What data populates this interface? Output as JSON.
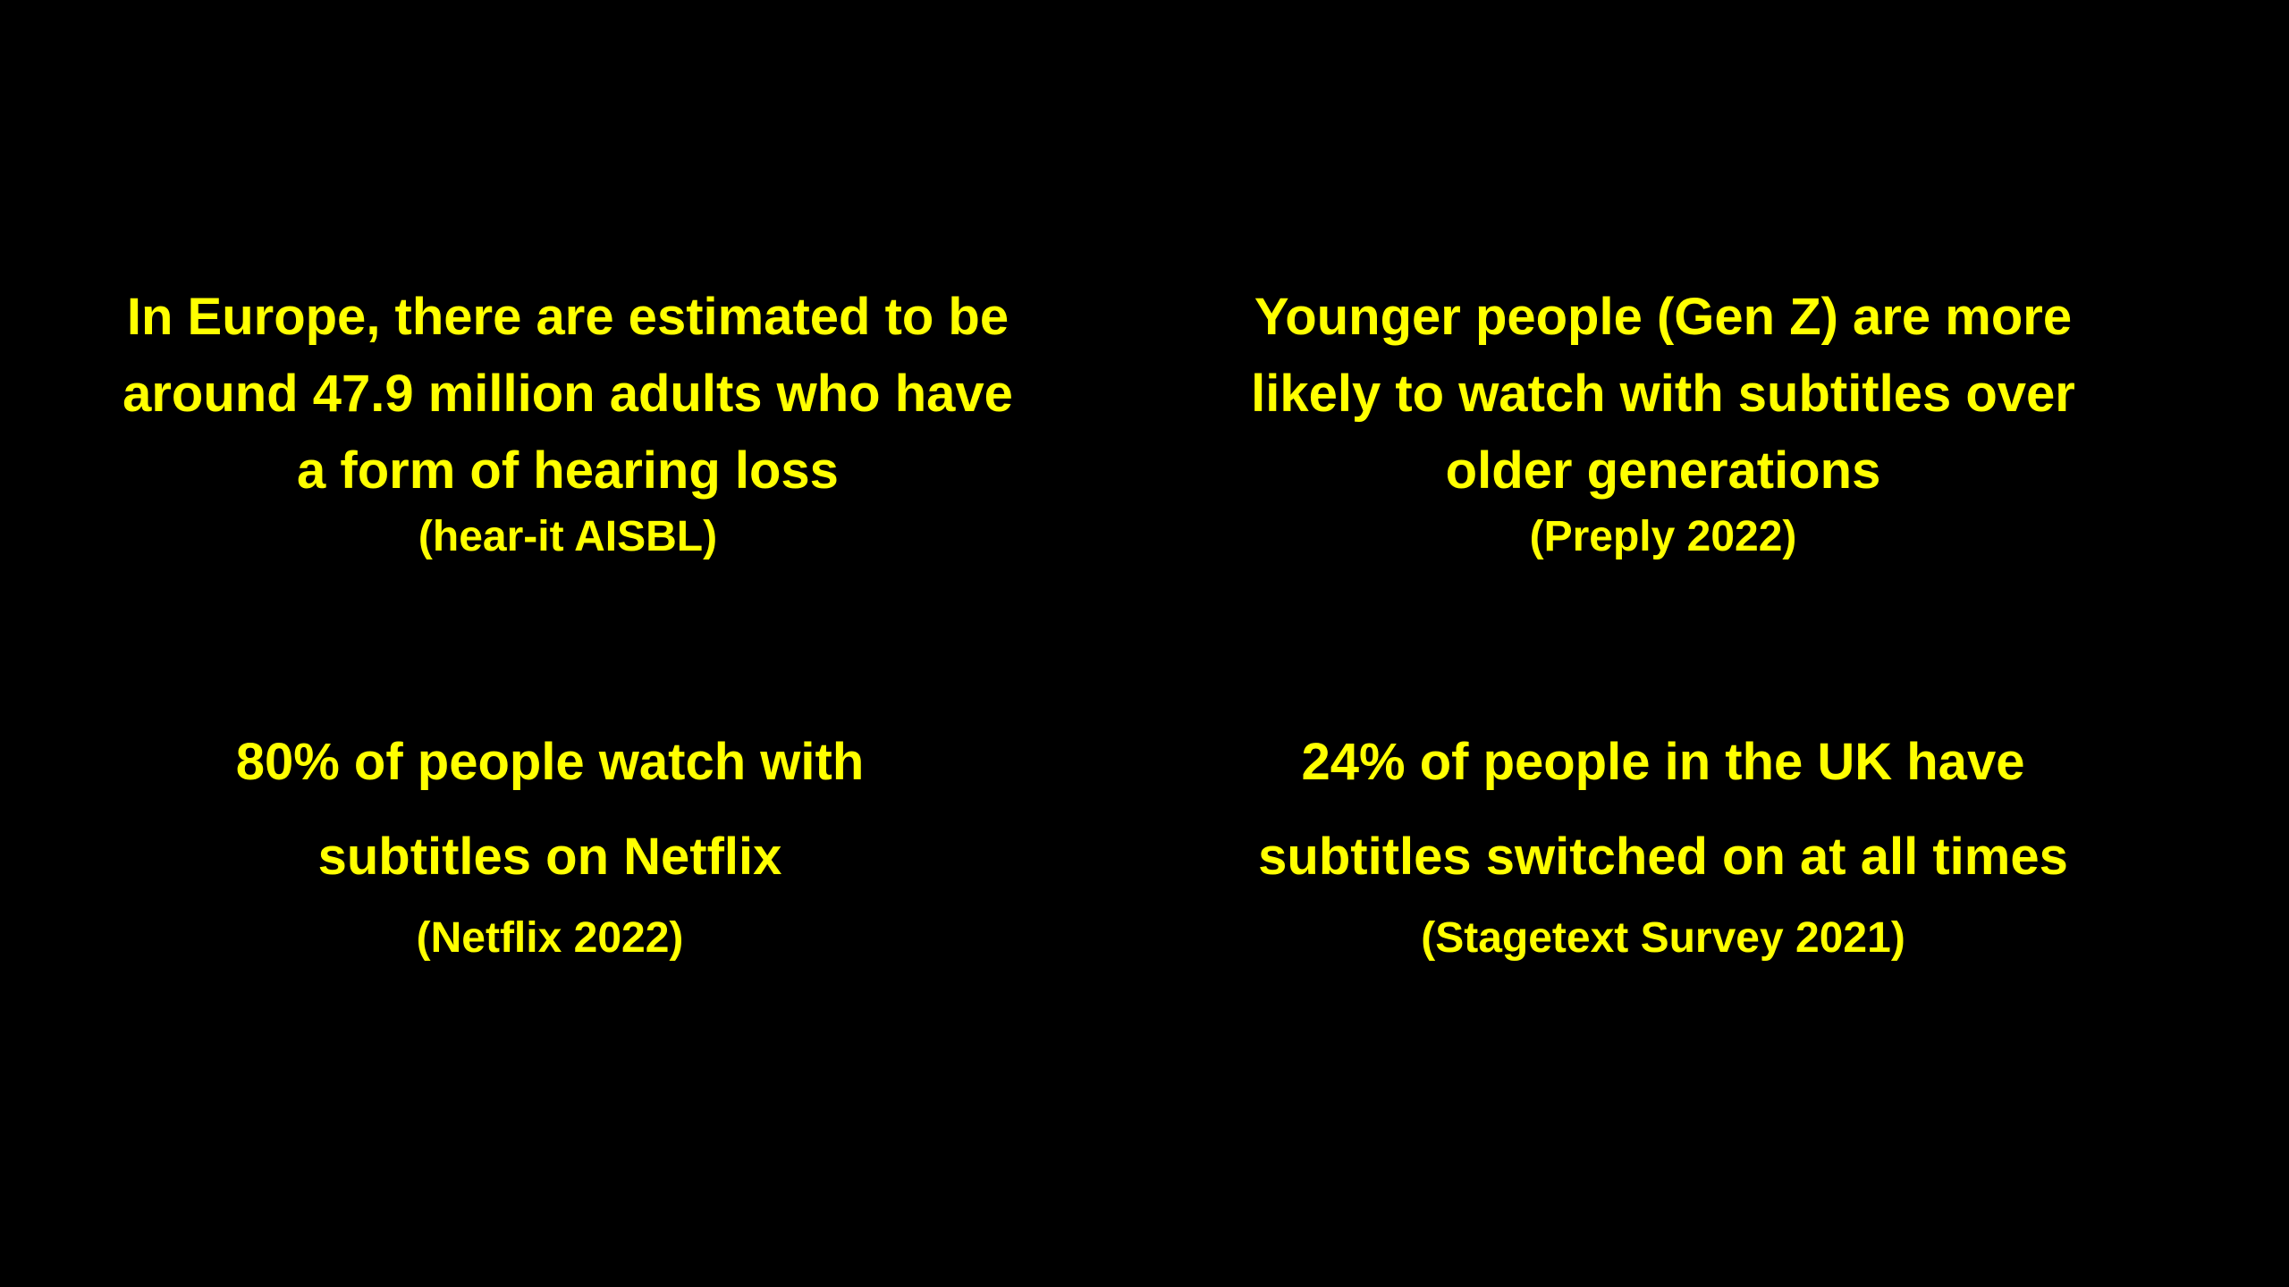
{
  "colors": {
    "background": "#000000",
    "text": "#FFFF00"
  },
  "facts": [
    {
      "lines": [
        "In Europe, there are estimated to be",
        "around 47.9 million adults who have",
        "a form of hearing loss"
      ],
      "source": "(hear-it AISBL)"
    },
    {
      "lines": [
        "Younger people (Gen Z) are more",
        "likely to watch with subtitles over",
        "older generations"
      ],
      "source": "(Preply 2022)"
    },
    {
      "lines": [
        "80% of people watch with",
        "subtitles on Netflix"
      ],
      "source": "(Netflix 2022)"
    },
    {
      "lines": [
        "24% of people in the UK have",
        "subtitles switched on at all times"
      ],
      "source": "(Stagetext Survey 2021)"
    }
  ]
}
